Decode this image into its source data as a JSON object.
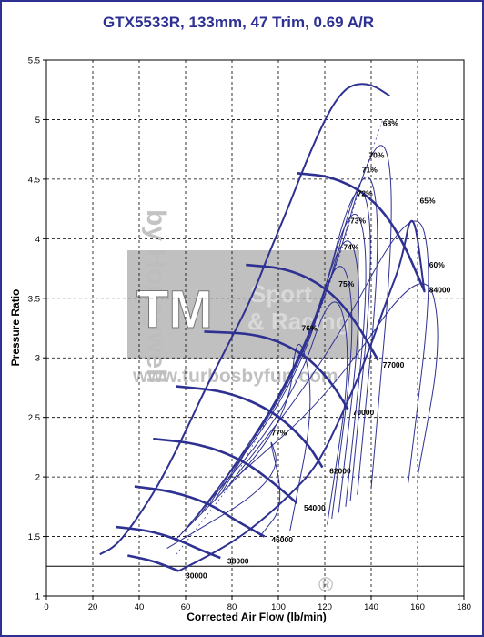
{
  "chart_data": {
    "type": "line",
    "title": "GTX5533R, 133mm, 47 Trim, 0.69 A/R",
    "xlabel": "Corrected Air Flow (lb/min)",
    "ylabel": "Pressure Ratio",
    "xlim": [
      0,
      180
    ],
    "ylim": [
      1,
      5.5
    ],
    "xticks": [
      "0",
      "20",
      "40",
      "60",
      "80",
      "100",
      "120",
      "140",
      "160",
      "180"
    ],
    "yticks": [
      "1",
      "1.5",
      "2",
      "2.5",
      "3",
      "3.5",
      "4",
      "4.5",
      "5",
      "5.5"
    ],
    "grid": true,
    "colors": {
      "curves": "#2e3192",
      "border": "#2e3192",
      "grid": "#000000",
      "watermark": "#bdbdbd",
      "watermark_box": "#8c8c8c"
    },
    "watermark": {
      "brand": "TM",
      "line1": "Sport",
      "line2": "& Racing",
      "url": "www.turbosbyfun.com",
      "vertical": "by Honeywell",
      "registered": "®"
    },
    "surge_line": [
      [
        23,
        1.35
      ],
      [
        30,
        1.42
      ],
      [
        38,
        1.62
      ],
      [
        48,
        1.92
      ],
      [
        58,
        2.3
      ],
      [
        68,
        2.72
      ],
      [
        78,
        3.1
      ],
      [
        88,
        3.48
      ],
      [
        96,
        3.88
      ],
      [
        104,
        4.25
      ],
      [
        112,
        4.65
      ],
      [
        120,
        5.0
      ],
      [
        126,
        5.2
      ],
      [
        132,
        5.3
      ],
      [
        140,
        5.3
      ],
      [
        148,
        5.2
      ]
    ],
    "choke_line": [
      [
        57,
        1.21
      ],
      [
        68,
        1.32
      ],
      [
        80,
        1.45
      ],
      [
        92,
        1.62
      ],
      [
        105,
        1.85
      ],
      [
        117,
        2.1
      ],
      [
        128,
        2.55
      ],
      [
        137,
        2.95
      ],
      [
        147,
        3.5
      ],
      [
        153,
        3.8
      ],
      [
        158,
        4.3
      ],
      [
        163,
        3.55
      ]
    ],
    "speed_lines": [
      {
        "label": "30000",
        "points": [
          [
            35,
            1.34
          ],
          [
            45,
            1.3
          ],
          [
            52,
            1.25
          ],
          [
            57,
            1.21
          ]
        ],
        "label_at": [
          60,
          1.18
        ]
      },
      {
        "label": "38000",
        "points": [
          [
            30,
            1.58
          ],
          [
            44,
            1.55
          ],
          [
            56,
            1.48
          ],
          [
            66,
            1.39
          ],
          [
            75,
            1.32
          ]
        ],
        "label_at": [
          78,
          1.3
        ]
      },
      {
        "label": "46000",
        "points": [
          [
            38,
            1.92
          ],
          [
            54,
            1.88
          ],
          [
            70,
            1.78
          ],
          [
            82,
            1.63
          ],
          [
            94,
            1.5
          ]
        ],
        "label_at": [
          97,
          1.48
        ]
      },
      {
        "label": "54000",
        "points": [
          [
            46,
            2.32
          ],
          [
            66,
            2.28
          ],
          [
            84,
            2.15
          ],
          [
            98,
            1.95
          ],
          [
            108,
            1.78
          ]
        ],
        "label_at": [
          111,
          1.75
        ]
      },
      {
        "label": "62000",
        "points": [
          [
            56,
            2.76
          ],
          [
            78,
            2.72
          ],
          [
            98,
            2.55
          ],
          [
            112,
            2.3
          ],
          [
            119,
            2.08
          ]
        ],
        "label_at": [
          122,
          2.06
        ]
      },
      {
        "label": "70000",
        "points": [
          [
            68,
            3.22
          ],
          [
            92,
            3.2
          ],
          [
            110,
            3.05
          ],
          [
            122,
            2.82
          ],
          [
            130,
            2.57
          ]
        ],
        "label_at": [
          132,
          2.55
        ]
      },
      {
        "label": "77000",
        "points": [
          [
            86,
            3.78
          ],
          [
            104,
            3.75
          ],
          [
            120,
            3.6
          ],
          [
            132,
            3.35
          ],
          [
            143,
            2.98
          ]
        ],
        "label_at": [
          145,
          2.95
        ]
      },
      {
        "label": "84000",
        "points": [
          [
            108,
            4.55
          ],
          [
            124,
            4.52
          ],
          [
            140,
            4.35
          ],
          [
            152,
            4.05
          ],
          [
            163,
            3.56
          ]
        ],
        "label_at": [
          165,
          3.58
        ]
      }
    ],
    "efficiency_islands": [
      {
        "label": "77%",
        "label_at": [
          97,
          2.37
        ]
      },
      {
        "label": "76%",
        "label_at": [
          110,
          3.25
        ]
      },
      {
        "label": "75%",
        "label_at": [
          126,
          3.62
        ]
      },
      {
        "label": "74%",
        "label_at": [
          128,
          3.93
        ]
      },
      {
        "label": "73%",
        "label_at": [
          131,
          4.15
        ]
      },
      {
        "label": "72%",
        "label_at": [
          134,
          4.38
        ]
      },
      {
        "label": "71%",
        "label_at": [
          136,
          4.58
        ]
      },
      {
        "label": "70%",
        "label_at": [
          139,
          4.7
        ]
      },
      {
        "label": "68%",
        "label_at": [
          145,
          4.97
        ]
      },
      {
        "label": "65%",
        "label_at": [
          161,
          4.32
        ]
      },
      {
        "label": "60%",
        "label_at": [
          165,
          3.78
        ]
      }
    ]
  }
}
